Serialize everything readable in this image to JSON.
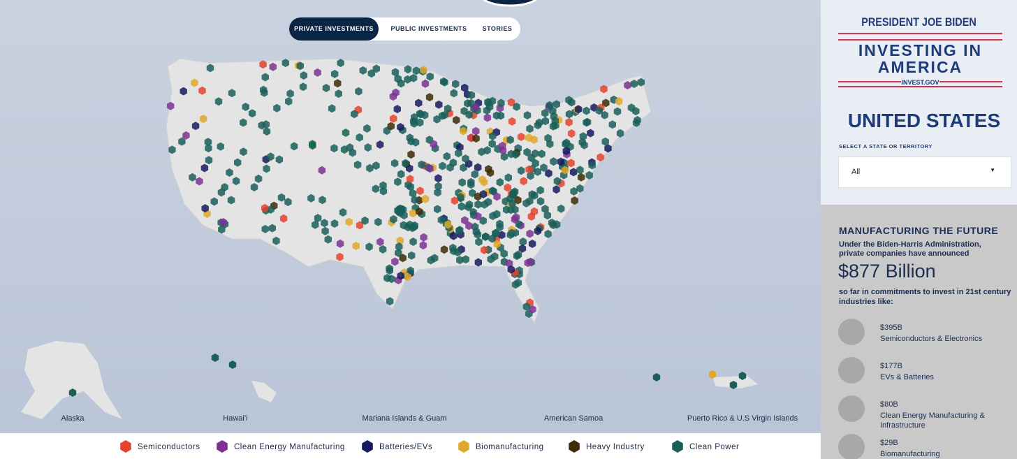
{
  "tabs": [
    "PRIVATE INVESTMENTS",
    "PUBLIC INVESTMENTS",
    "STORIES"
  ],
  "insets": [
    "Alaska",
    "Hawaiʻi",
    "Mariana Islands & Guam",
    "American Samoa",
    "Puerto Rico & U.S Virgin Islands"
  ],
  "legend": [
    {
      "name": "Semiconductors",
      "color": "#e4432d"
    },
    {
      "name": "Clean Energy Manufacturing",
      "color": "#7b3294"
    },
    {
      "name": "Batteries/EVs",
      "color": "#161a5e"
    },
    {
      "name": "Biomanufacturing",
      "color": "#e0a82a"
    },
    {
      "name": "Heavy Industry",
      "color": "#3d2c06"
    },
    {
      "name": "Clean Power",
      "color": "#1a5f5b"
    }
  ],
  "sidebar": {
    "kicker": "PRESIDENT JOE BIDEN",
    "brand": "INVESTING IN AMERICA",
    "site": "INVEST.GOV",
    "region": "UNITED STATES",
    "select_label": "SELECT A STATE OR TERRITORY",
    "select_value": "All",
    "section_title": "MANUFACTURING THE FUTURE",
    "intro": "Under the Biden-Harris Administration, private companies have announced",
    "total": "$877 Billion",
    "outro": "so far in commitments to invest in 21st century industries like:",
    "items": [
      {
        "amount": "$395B",
        "label": "Semiconductors & Electronics"
      },
      {
        "amount": "$177B",
        "label": "EVs & Batteries"
      },
      {
        "amount": "$80B",
        "label": "Clean Energy Manufacturing & Infrastructure"
      },
      {
        "amount": "$29B",
        "label": "Biomanufacturing"
      }
    ]
  }
}
